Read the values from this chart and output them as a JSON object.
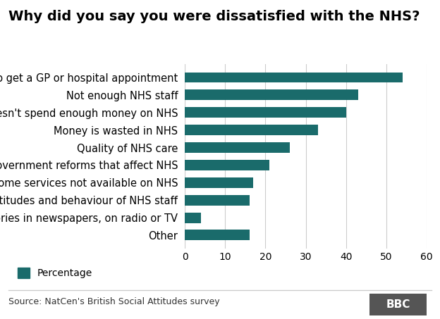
{
  "title": "Why did you say you were dissatisfied with the NHS?",
  "categories": [
    "Takes too long to get a GP or hospital appointment",
    "Not enough NHS staff",
    "Government doesn't spend enough money on NHS",
    "Money is wasted in NHS",
    "Quality of NHS care",
    "Government reforms that affect NHS",
    "Some services not available on NHS",
    "Attitudes and behaviour of NHS staff",
    "Stories in newspapers, on radio or TV",
    "Other"
  ],
  "values": [
    54,
    43,
    40,
    33,
    26,
    21,
    17,
    16,
    4,
    16
  ],
  "bar_color": "#1a6b6b",
  "xlim": [
    0,
    60
  ],
  "xticks": [
    0,
    10,
    20,
    30,
    40,
    50,
    60
  ],
  "legend_label": "Percentage",
  "source_text": "Source: NatCen's British Social Attitudes survey",
  "bbc_text": "BBC",
  "title_fontsize": 14,
  "label_fontsize": 10.5,
  "tick_fontsize": 10,
  "background_color": "#ffffff"
}
